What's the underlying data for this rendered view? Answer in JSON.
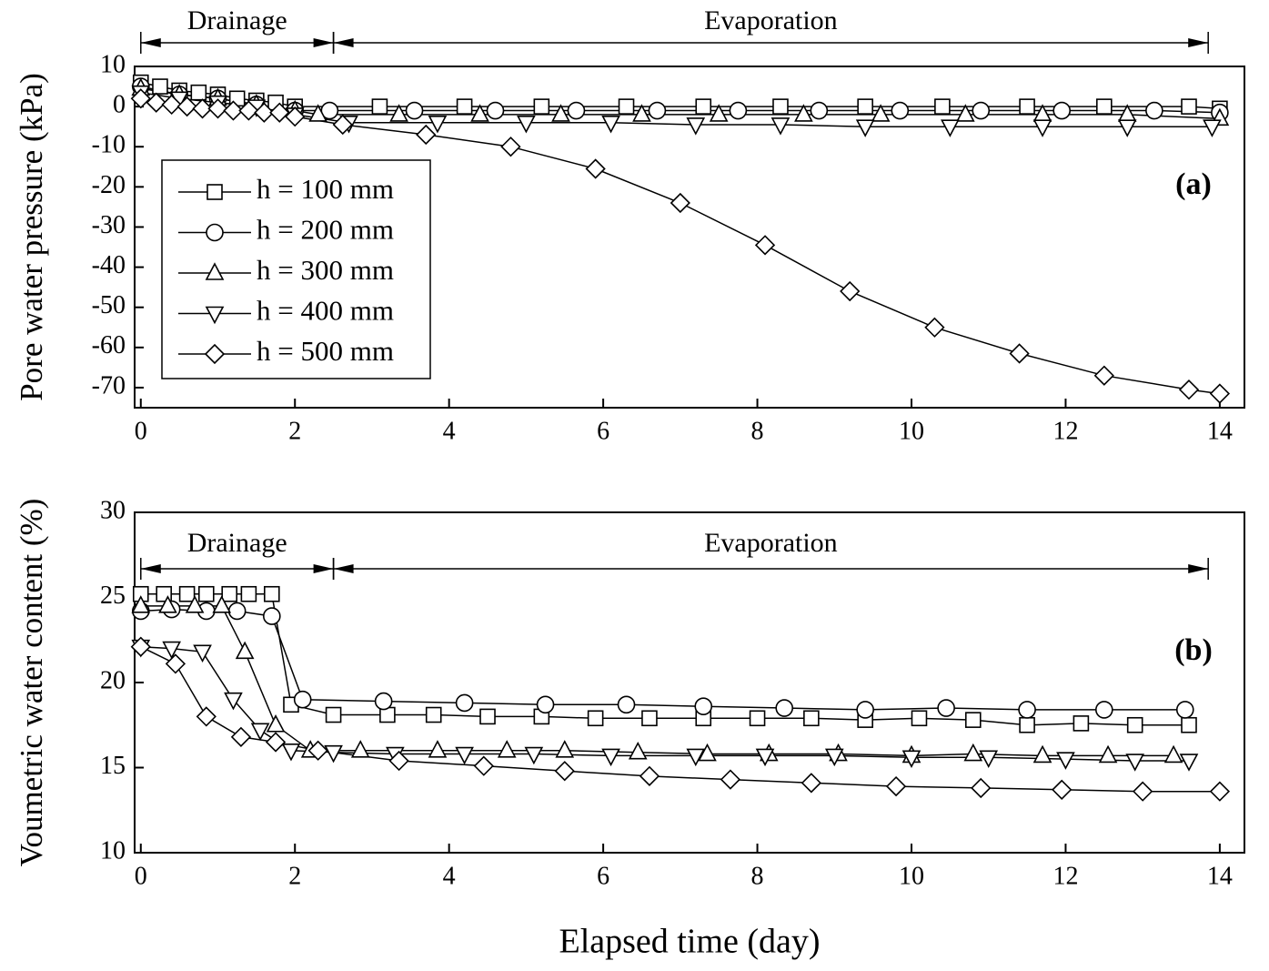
{
  "chart_data": [
    {
      "type": "line",
      "ylabel": "Pore water pressure (kPa)",
      "panel_label": "(a)",
      "xlim": [
        -0.08,
        14.32
      ],
      "xticks": [
        0,
        2,
        4,
        6,
        8,
        10,
        12,
        14
      ],
      "ylim": [
        -75,
        10
      ],
      "yticks": [
        10,
        0,
        -10,
        -20,
        -30,
        -40,
        -50,
        -60,
        -70
      ],
      "legend": "left",
      "phases": [
        {
          "label": "Drainage",
          "x": [
            0,
            2.5
          ]
        },
        {
          "label": "Evaporation",
          "x": [
            2.5,
            13.85
          ]
        }
      ],
      "series": [
        {
          "name": "h = 100 mm",
          "marker": "square",
          "color": "#000000",
          "x": [
            0,
            0.25,
            0.5,
            0.75,
            1,
            1.25,
            1.5,
            1.75,
            2,
            3.1,
            4.2,
            5.2,
            6.3,
            7.3,
            8.3,
            9.4,
            10.4,
            11.5,
            12.5,
            13.6,
            14
          ],
          "values": [
            6,
            5,
            4,
            3.5,
            3,
            2,
            1.5,
            1,
            0,
            0,
            0,
            0,
            0,
            0,
            0,
            0,
            0,
            0,
            0,
            0,
            -0.5
          ]
        },
        {
          "name": "h = 200 mm",
          "marker": "circle",
          "color": "#000000",
          "x": [
            0,
            0.5,
            1,
            1.5,
            2,
            2.45,
            3.55,
            4.6,
            5.65,
            6.7,
            7.75,
            8.8,
            9.85,
            10.9,
            11.95,
            13.15,
            14
          ],
          "values": [
            5,
            3,
            2,
            0.5,
            -1,
            -1,
            -1,
            -1,
            -1,
            -1,
            -1,
            -1,
            -1,
            -1,
            -1,
            -1,
            -1.5
          ]
        },
        {
          "name": "h = 300 mm",
          "marker": "triangle-up",
          "color": "#000000",
          "x": [
            0,
            0.5,
            1,
            1.5,
            2,
            2.3,
            3.35,
            4.4,
            5.45,
            6.5,
            7.5,
            8.6,
            9.6,
            10.7,
            11.7,
            12.8,
            14
          ],
          "values": [
            4.5,
            3,
            2,
            0.5,
            -1,
            -2,
            -2,
            -2,
            -2,
            -2,
            -2,
            -2,
            -2,
            -2,
            -2,
            -2,
            -3
          ]
        },
        {
          "name": "h = 400 mm",
          "marker": "triangle-down",
          "color": "#000000",
          "x": [
            0,
            0.5,
            1,
            1.5,
            2,
            2.7,
            3.85,
            5,
            6.1,
            7.2,
            8.3,
            9.4,
            10.5,
            11.7,
            12.8,
            13.9
          ],
          "values": [
            3.5,
            2,
            1,
            0,
            -2,
            -4,
            -4,
            -4,
            -4,
            -4.5,
            -4.5,
            -5,
            -5,
            -5,
            -5,
            -5
          ]
        },
        {
          "name": "h = 500 mm",
          "marker": "diamond",
          "color": "#000000",
          "x": [
            0,
            0.2,
            0.4,
            0.6,
            0.8,
            1,
            1.2,
            1.4,
            1.6,
            1.8,
            2,
            2.62,
            3.7,
            4.8,
            5.9,
            7,
            8.1,
            9.2,
            10.3,
            11.4,
            12.5,
            13.6,
            14
          ],
          "values": [
            2,
            1,
            0.5,
            0,
            -0.5,
            -0.5,
            -1,
            -1,
            -1.5,
            -1.5,
            -2.5,
            -4.5,
            -7,
            -10,
            -15.5,
            -24,
            -34.5,
            -46,
            -55,
            -61.5,
            -67,
            -70.5,
            -71.5
          ]
        }
      ]
    },
    {
      "type": "line",
      "ylabel": "Voumetric water content (%)",
      "xlabel": "Elapsed time (day)",
      "panel_label": "(b)",
      "xlim": [
        -0.08,
        14.32
      ],
      "xticks": [
        0,
        2,
        4,
        6,
        8,
        10,
        12,
        14
      ],
      "ylim": [
        10,
        30
      ],
      "yticks": [
        30,
        25,
        20,
        15,
        10
      ],
      "phases": [
        {
          "label": "Drainage",
          "x": [
            0,
            2.5
          ]
        },
        {
          "label": "Evaporation",
          "x": [
            2.5,
            13.85
          ]
        }
      ],
      "series": [
        {
          "marker": "square",
          "color": "#000000",
          "x": [
            0,
            0.3,
            0.6,
            0.85,
            1.15,
            1.4,
            1.7,
            1.95,
            2.5,
            3.2,
            3.8,
            4.5,
            5.2,
            5.9,
            6.6,
            7.3,
            8,
            8.7,
            9.4,
            10.1,
            10.8,
            11.5,
            12.2,
            12.9,
            13.6
          ],
          "values": [
            25.2,
            25.2,
            25.2,
            25.2,
            25.2,
            25.2,
            25.2,
            18.7,
            18.1,
            18.1,
            18.1,
            18,
            18,
            17.9,
            17.9,
            17.9,
            17.9,
            17.9,
            17.8,
            17.9,
            17.8,
            17.5,
            17.6,
            17.5,
            17.5
          ]
        },
        {
          "marker": "circle",
          "color": "#000000",
          "x": [
            0,
            0.4,
            0.85,
            1.25,
            1.7,
            2.1,
            3.15,
            4.2,
            5.25,
            6.3,
            7.3,
            8.35,
            9.4,
            10.45,
            11.5,
            12.5,
            13.55
          ],
          "values": [
            24.2,
            24.3,
            24.2,
            24.2,
            23.9,
            19,
            18.9,
            18.8,
            18.7,
            18.7,
            18.6,
            18.5,
            18.4,
            18.5,
            18.4,
            18.4,
            18.4
          ]
        },
        {
          "marker": "triangle-up",
          "color": "#000000",
          "x": [
            0,
            0.35,
            0.7,
            1.05,
            1.35,
            1.75,
            2.2,
            2.85,
            3.85,
            4.75,
            5.5,
            6.45,
            7.35,
            8.15,
            9.05,
            10,
            10.8,
            11.7,
            12.55,
            13.4
          ],
          "values": [
            24.5,
            24.5,
            24.5,
            24.5,
            21.8,
            17.5,
            16,
            16,
            16,
            16,
            16,
            15.9,
            15.8,
            15.8,
            15.8,
            15.7,
            15.8,
            15.7,
            15.7,
            15.7
          ]
        },
        {
          "marker": "triangle-down",
          "color": "#000000",
          "x": [
            0,
            0.4,
            0.8,
            1.2,
            1.55,
            1.95,
            2.5,
            3.3,
            4.2,
            5.1,
            6.1,
            7.2,
            8.1,
            9,
            10,
            11,
            12,
            12.9,
            13.6
          ],
          "values": [
            22.1,
            22,
            21.8,
            19,
            17.2,
            16,
            15.9,
            15.8,
            15.8,
            15.8,
            15.7,
            15.7,
            15.7,
            15.7,
            15.6,
            15.6,
            15.5,
            15.4,
            15.4
          ]
        },
        {
          "marker": "diamond",
          "color": "#000000",
          "x": [
            0,
            0.45,
            0.85,
            1.3,
            1.75,
            2.3,
            3.35,
            4.45,
            5.5,
            6.6,
            7.65,
            8.7,
            9.8,
            10.9,
            11.95,
            13,
            14
          ],
          "values": [
            22.1,
            21.1,
            18,
            16.8,
            16.5,
            16,
            15.4,
            15.1,
            14.8,
            14.5,
            14.3,
            14.1,
            13.9,
            13.8,
            13.7,
            13.6,
            13.6
          ]
        }
      ]
    }
  ]
}
